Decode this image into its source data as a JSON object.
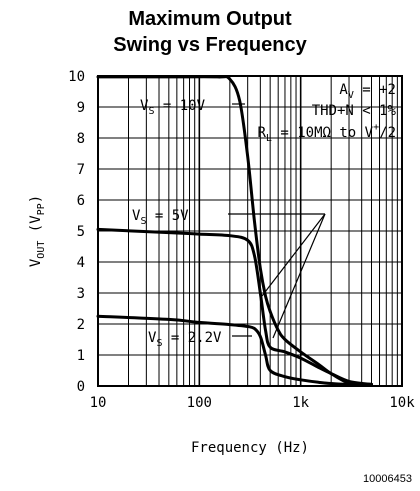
{
  "chart_data": {
    "type": "line",
    "title_line1": "Maximum Output",
    "title_line2": "Swing vs Frequency",
    "xlabel": "Frequency (Hz)",
    "ylabel_main": "V",
    "ylabel_sub": "OUT",
    "ylabel_unit_main": " (V",
    "ylabel_unit_sub": "PP",
    "ylabel_close": ")",
    "xscale": "log",
    "xlim": [
      10,
      10000
    ],
    "ylim": [
      0,
      10
    ],
    "grid": true,
    "x_ticks": [
      "10",
      "100",
      "1k",
      "10k"
    ],
    "y_ticks": [
      "0",
      "1",
      "2",
      "3",
      "4",
      "5",
      "6",
      "7",
      "8",
      "9",
      "10"
    ],
    "conditions": {
      "av_main": "A",
      "av_sub": "V",
      "av_value": " = +2",
      "thd": "THD+N < 1%",
      "rl_main": "R",
      "rl_sub": "L",
      "rl_value": " = 10MΩ to V",
      "rl_sup": "+",
      "rl_tail": "/2"
    },
    "series": [
      {
        "label_main": "V",
        "label_sub": "S",
        "label_value": " = 10V",
        "x": [
          10,
          50,
          150,
          200,
          250,
          300,
          350,
          400,
          450,
          500,
          600,
          700,
          1000,
          1500,
          2000,
          3000,
          5000
        ],
        "y": [
          9.97,
          9.97,
          9.97,
          9.9,
          9.2,
          7.4,
          5.3,
          3.8,
          2.9,
          2.4,
          1.8,
          1.5,
          1.1,
          0.7,
          0.4,
          0.1,
          0.05
        ]
      },
      {
        "label_main": "V",
        "label_sub": "S",
        "label_value": " = 5V",
        "x": [
          10,
          50,
          100,
          200,
          300,
          350,
          400,
          450,
          500,
          700,
          1000,
          1500,
          2000,
          3000,
          5000
        ],
        "y": [
          5.05,
          4.95,
          4.9,
          4.85,
          4.7,
          4.2,
          3.0,
          1.8,
          1.25,
          1.1,
          0.9,
          0.6,
          0.4,
          0.15,
          0.05
        ]
      },
      {
        "label_main": "V",
        "label_sub": "S",
        "label_value": " = 2.2V",
        "x": [
          10,
          50,
          100,
          200,
          300,
          350,
          400,
          450,
          500,
          700,
          1000,
          1500,
          2000,
          3000,
          5000
        ],
        "y": [
          2.25,
          2.15,
          2.05,
          1.98,
          1.92,
          1.85,
          1.6,
          1.0,
          0.5,
          0.3,
          0.2,
          0.12,
          0.08,
          0.05,
          0.05
        ]
      }
    ],
    "figure_id": "10006453"
  }
}
